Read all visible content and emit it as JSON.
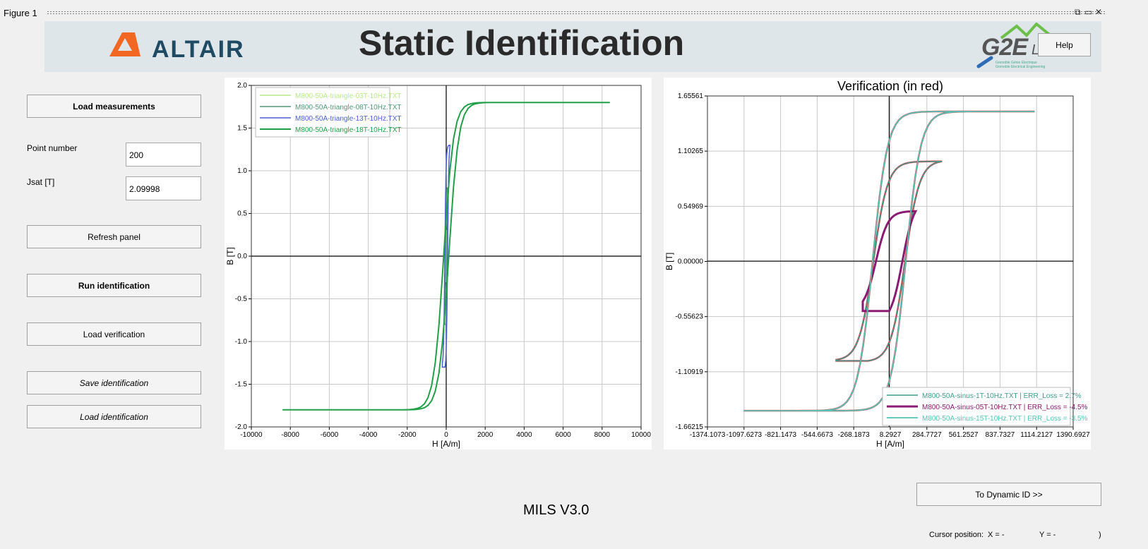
{
  "window": {
    "title": "Figure 1"
  },
  "banner": {
    "title": "Static Identification",
    "altair_logo": "ALTAIR",
    "g2e_logo": "G2E",
    "g2e_lab": "Lab",
    "g2e_sub1": "Grenoble Génie Electrique",
    "g2e_sub2": "Grenoble Electrical Engineering"
  },
  "help_button": "Help",
  "sidebar": {
    "load_measurements": "Load measurements",
    "point_number_label": "Point number",
    "point_number_value": "200",
    "jsat_label": "Jsat [T]",
    "jsat_value": "2.09998",
    "refresh_panel": "Refresh panel",
    "run_identification": "Run identification",
    "load_verification": "Load verification",
    "save_identification": "Save identification",
    "load_identification": "Load identification"
  },
  "version_label": "MILS V3.0",
  "dynamic_button": "To Dynamic ID >>",
  "cursor": {
    "label": "Cursor position:",
    "x": "X = -",
    "y": "Y = -",
    "close": ")"
  },
  "colors": {
    "altair_orange": "#f26722",
    "altair_blue": "#1f4a63",
    "g2e_green": "#6cc04a",
    "red_curve": "#e8232d",
    "teal": "#4aa89a",
    "purple": "#8b1a72"
  },
  "chart_data": [
    {
      "type": "line",
      "title": "",
      "xlabel": "H [A/m]",
      "ylabel": "B [T]",
      "xlim": [
        -10000,
        10000
      ],
      "ylim": [
        -2.0,
        2.0
      ],
      "xticks": [
        "-10000",
        "-8000",
        "-6000",
        "-4000",
        "-2000",
        "0",
        "2000",
        "4000",
        "6000",
        "8000",
        "10000"
      ],
      "yticks": [
        "2.0",
        "1.5",
        "1.0",
        "0.5",
        "0.0",
        "-0.5",
        "-1.0",
        "-1.5",
        "-2.0"
      ],
      "grid": true,
      "legend_position": "top-left",
      "series": [
        {
          "name": "M800-50A-triangle-03T-10Hz.TXT",
          "color": "#b9ea8a",
          "hmax": 20,
          "bsat": 0.3,
          "coercive": 15
        },
        {
          "name": "M800-50A-triangle-08T-10Hz.TXT",
          "color": "#4f9a78",
          "hmax": 80,
          "bsat": 0.8,
          "coercive": 35
        },
        {
          "name": "M800-50A-triangle-13T-10Hz.TXT",
          "color": "#4b5fd6",
          "hmax": 200,
          "bsat": 1.3,
          "coercive": 70
        },
        {
          "name": "M800-50A-triangle-18T-10Hz.TXT",
          "color": "#21a048",
          "hmax": 8400,
          "bsat": 1.8,
          "coercive": 130
        }
      ]
    },
    {
      "type": "line",
      "title": "Verification (in red)",
      "xlabel": "H [A/m]",
      "ylabel": "B [T]",
      "xlim": [
        -1374.1073,
        1390.6927
      ],
      "ylim": [
        -1.66215,
        1.65561
      ],
      "xticks": [
        "-1374.1073",
        "-1097.6273",
        "-821.1473",
        "-544.6673",
        "-268.1873",
        "8.2927",
        "284.7727",
        "561.2527",
        "837.7327",
        "1114.2127",
        "1390.6927"
      ],
      "yticks": [
        "1.65561",
        "1.10265",
        "0.54969",
        "0.00000",
        "-0.55623",
        "-1.10919",
        "-1.66215"
      ],
      "grid": true,
      "legend_position": "bottom-right",
      "series": [
        {
          "name": "M800-50A-sinus-1T-10Hz.TXT | ERR_Loss = 2.7%",
          "color": "#3f9c8e",
          "hmax": 400,
          "bsat": 1.0,
          "coercive": 120
        },
        {
          "name": "M800-50A-sinus-05T-10Hz.TXT | ERR_Loss = -4.5%",
          "color": "#8b1a72",
          "hmax": 200,
          "bsat": 0.5,
          "coercive": 100
        },
        {
          "name": "M800-50A-sinus-15T-10Hz.TXT | ERR_Loss = -3.5%",
          "color": "#55c4b6",
          "hmax": 1100,
          "bsat": 1.5,
          "coercive": 125
        }
      ]
    }
  ]
}
